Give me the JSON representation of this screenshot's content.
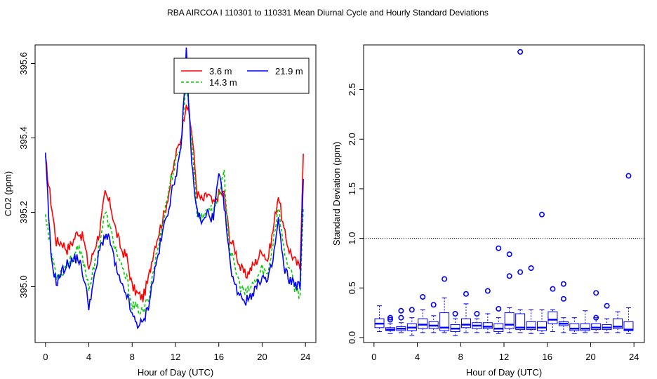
{
  "figure_title": "RBA   AIRCOA I   110301 to 110331   Mean Diurnal Cycle and Hourly Standard Deviations",
  "colors": {
    "red": "#ff0000",
    "green": "#00cc00",
    "blue": "#0000ff",
    "axis": "#000000"
  },
  "chart_data": [
    {
      "type": "line",
      "title": "",
      "xlabel": "Hour of Day (UTC)",
      "ylabel": "CO2 (ppm)",
      "xlim": [
        -0.96,
        24.96
      ],
      "ylim": [
        394.85,
        395.65
      ],
      "xticks": [
        0,
        4,
        8,
        12,
        16,
        20,
        24
      ],
      "yticks": [
        395.0,
        395.2,
        395.4,
        395.6
      ],
      "ytick_labels": [
        "395.0",
        "395.2",
        "395.4",
        "395.6"
      ],
      "legend": {
        "position": "top-right",
        "entries": [
          "3.6 m",
          "14.3 m",
          "21.9 m"
        ]
      },
      "knots": [
        0,
        0.5,
        1,
        1.5,
        2,
        2.5,
        3,
        3.5,
        4,
        4.5,
        5,
        5.5,
        6,
        6.5,
        7,
        7.5,
        8,
        8.5,
        9,
        9.5,
        10,
        10.5,
        11,
        11.5,
        12,
        12.5,
        13,
        13.5,
        14,
        14.5,
        15,
        15.5,
        16,
        16.5,
        17,
        17.5,
        18,
        18.5,
        19,
        19.5,
        20,
        20.5,
        21,
        21.5,
        22,
        22.5,
        23,
        23.5,
        23.8
      ],
      "series": [
        {
          "name": "3.6 m",
          "color": "#ff0000",
          "dash": "",
          "values": [
            395.34,
            395.23,
            395.12,
            395.12,
            395.1,
            395.12,
            395.15,
            395.13,
            395.05,
            395.1,
            395.15,
            395.25,
            395.22,
            395.15,
            395.1,
            395.08,
            395.0,
            394.98,
            394.97,
            395.02,
            395.1,
            395.15,
            395.2,
            395.27,
            395.35,
            395.4,
            395.5,
            395.42,
            395.25,
            395.23,
            395.25,
            395.22,
            395.25,
            395.25,
            395.13,
            395.1,
            395.05,
            395.03,
            395.05,
            395.07,
            395.1,
            395.07,
            395.15,
            395.25,
            395.15,
            395.1,
            395.07,
            395.05,
            395.37
          ]
        },
        {
          "name": "14.3 m",
          "color": "#00cc00",
          "dash": "4,3",
          "values": [
            395.2,
            395.1,
            395.03,
            395.04,
            395.06,
            395.08,
            395.1,
            395.07,
            395.0,
            395.05,
            395.12,
            395.2,
            395.15,
            395.1,
            395.05,
            395.02,
            394.95,
            394.94,
            394.93,
            394.97,
            395.05,
            395.12,
            395.2,
            395.28,
            395.33,
            395.38,
            395.55,
            395.4,
            395.2,
            395.18,
            395.22,
            395.2,
            395.25,
            395.3,
            395.1,
            395.05,
            395.0,
            394.98,
            395.0,
            395.02,
            395.05,
            395.03,
            395.12,
            395.22,
            395.1,
            395.05,
            395.0,
            394.98,
            395.2
          ]
        },
        {
          "name": "21.9 m",
          "color": "#0000ff",
          "dash": "",
          "values": [
            395.35,
            395.08,
            395.01,
            395.04,
            395.06,
            395.07,
            395.08,
            395.03,
            394.95,
            395.02,
            395.1,
            395.14,
            395.12,
            395.05,
            395.0,
            394.98,
            394.92,
            394.9,
            394.9,
            394.95,
            395.03,
            395.1,
            395.17,
            395.23,
            395.3,
            395.36,
            395.63,
            395.33,
            395.2,
            395.17,
            395.2,
            395.18,
            395.3,
            395.22,
            395.07,
            395.0,
            394.98,
            394.96,
            394.98,
            395.0,
            395.03,
            395.01,
            395.07,
            395.18,
            395.05,
            395.02,
            395.01,
            395.0,
            395.28
          ]
        }
      ]
    },
    {
      "type": "boxplot",
      "title": "",
      "xlabel": "Hour of Day (UTC)",
      "ylabel": "Standard Deviation (ppm)",
      "xlim": [
        -0.96,
        24.96
      ],
      "ylim": [
        -0.05,
        2.95
      ],
      "xticks": [
        0,
        4,
        8,
        12,
        16,
        20,
        24
      ],
      "yticks": [
        0.0,
        0.5,
        1.0,
        1.5,
        2.0,
        2.5
      ],
      "ytick_labels": [
        "0.0",
        "0.5",
        "1.0",
        "1.5",
        "2.0",
        "2.5"
      ],
      "reference_line": 1.0,
      "color": "#0000ff",
      "boxes": [
        {
          "hour": 0.5,
          "low": 0.06,
          "q1": 0.1,
          "median": 0.14,
          "q3": 0.19,
          "high": 0.32,
          "outliers": []
        },
        {
          "hour": 1.5,
          "low": 0.04,
          "q1": 0.07,
          "median": 0.08,
          "q3": 0.1,
          "high": 0.14,
          "outliers": [
            0.18,
            0.2
          ]
        },
        {
          "hour": 2.5,
          "low": 0.05,
          "q1": 0.07,
          "median": 0.09,
          "q3": 0.11,
          "high": 0.15,
          "outliers": [
            0.2,
            0.27
          ]
        },
        {
          "hour": 3.5,
          "low": 0.02,
          "q1": 0.07,
          "median": 0.1,
          "q3": 0.14,
          "high": 0.2,
          "outliers": [
            0.28
          ]
        },
        {
          "hour": 4.5,
          "low": 0.05,
          "q1": 0.09,
          "median": 0.13,
          "q3": 0.19,
          "high": 0.28,
          "outliers": [
            0.41
          ]
        },
        {
          "hour": 5.5,
          "low": 0.05,
          "q1": 0.09,
          "median": 0.12,
          "q3": 0.16,
          "high": 0.22,
          "outliers": [
            0.33
          ]
        },
        {
          "hour": 6.5,
          "low": 0.05,
          "q1": 0.07,
          "median": 0.1,
          "q3": 0.25,
          "high": 0.4,
          "outliers": [
            0.59
          ]
        },
        {
          "hour": 7.5,
          "low": 0.02,
          "q1": 0.06,
          "median": 0.09,
          "q3": 0.13,
          "high": 0.19,
          "outliers": [
            0.24
          ]
        },
        {
          "hour": 8.5,
          "low": 0.05,
          "q1": 0.1,
          "median": 0.13,
          "q3": 0.19,
          "high": 0.34,
          "outliers": [
            0.44
          ]
        },
        {
          "hour": 9.5,
          "low": 0.05,
          "q1": 0.09,
          "median": 0.12,
          "q3": 0.15,
          "high": 0.19,
          "outliers": [
            0.24
          ]
        },
        {
          "hour": 10.5,
          "low": 0.05,
          "q1": 0.09,
          "median": 0.11,
          "q3": 0.15,
          "high": 0.24,
          "outliers": [
            0.47
          ]
        },
        {
          "hour": 11.5,
          "low": 0.04,
          "q1": 0.06,
          "median": 0.09,
          "q3": 0.14,
          "high": 0.2,
          "outliers": [
            0.29,
            0.9
          ]
        },
        {
          "hour": 12.5,
          "low": 0.05,
          "q1": 0.09,
          "median": 0.13,
          "q3": 0.25,
          "high": 0.3,
          "outliers": [
            0.62,
            0.84
          ]
        },
        {
          "hour": 13.5,
          "low": 0.05,
          "q1": 0.08,
          "median": 0.1,
          "q3": 0.24,
          "high": 0.28,
          "outliers": [
            0.66,
            2.88
          ]
        },
        {
          "hour": 14.5,
          "low": 0.04,
          "q1": 0.08,
          "median": 0.1,
          "q3": 0.16,
          "high": 0.28,
          "outliers": [
            0.7
          ]
        },
        {
          "hour": 15.5,
          "low": 0.04,
          "q1": 0.07,
          "median": 0.1,
          "q3": 0.16,
          "high": 0.28,
          "outliers": [
            1.24
          ]
        },
        {
          "hour": 16.5,
          "low": 0.06,
          "q1": 0.14,
          "median": 0.18,
          "q3": 0.26,
          "high": 0.28,
          "outliers": [
            0.49
          ]
        },
        {
          "hour": 17.5,
          "low": 0.05,
          "q1": 0.12,
          "median": 0.14,
          "q3": 0.16,
          "high": 0.2,
          "outliers": [
            0.39,
            0.54
          ]
        },
        {
          "hour": 18.5,
          "low": 0.04,
          "q1": 0.07,
          "median": 0.09,
          "q3": 0.14,
          "high": 0.2,
          "outliers": []
        },
        {
          "hour": 19.5,
          "low": 0.05,
          "q1": 0.07,
          "median": 0.09,
          "q3": 0.14,
          "high": 0.27,
          "outliers": []
        },
        {
          "hour": 20.5,
          "low": 0.05,
          "q1": 0.08,
          "median": 0.1,
          "q3": 0.14,
          "high": 0.2,
          "outliers": [
            0.2,
            0.45
          ]
        },
        {
          "hour": 21.5,
          "low": 0.05,
          "q1": 0.08,
          "median": 0.1,
          "q3": 0.13,
          "high": 0.19,
          "outliers": [
            0.32
          ]
        },
        {
          "hour": 22.5,
          "low": 0.05,
          "q1": 0.09,
          "median": 0.11,
          "q3": 0.19,
          "high": 0.26,
          "outliers": []
        },
        {
          "hour": 23.5,
          "low": 0.04,
          "q1": 0.07,
          "median": 0.08,
          "q3": 0.16,
          "high": 0.3,
          "outliers": [
            1.63
          ]
        }
      ]
    }
  ]
}
